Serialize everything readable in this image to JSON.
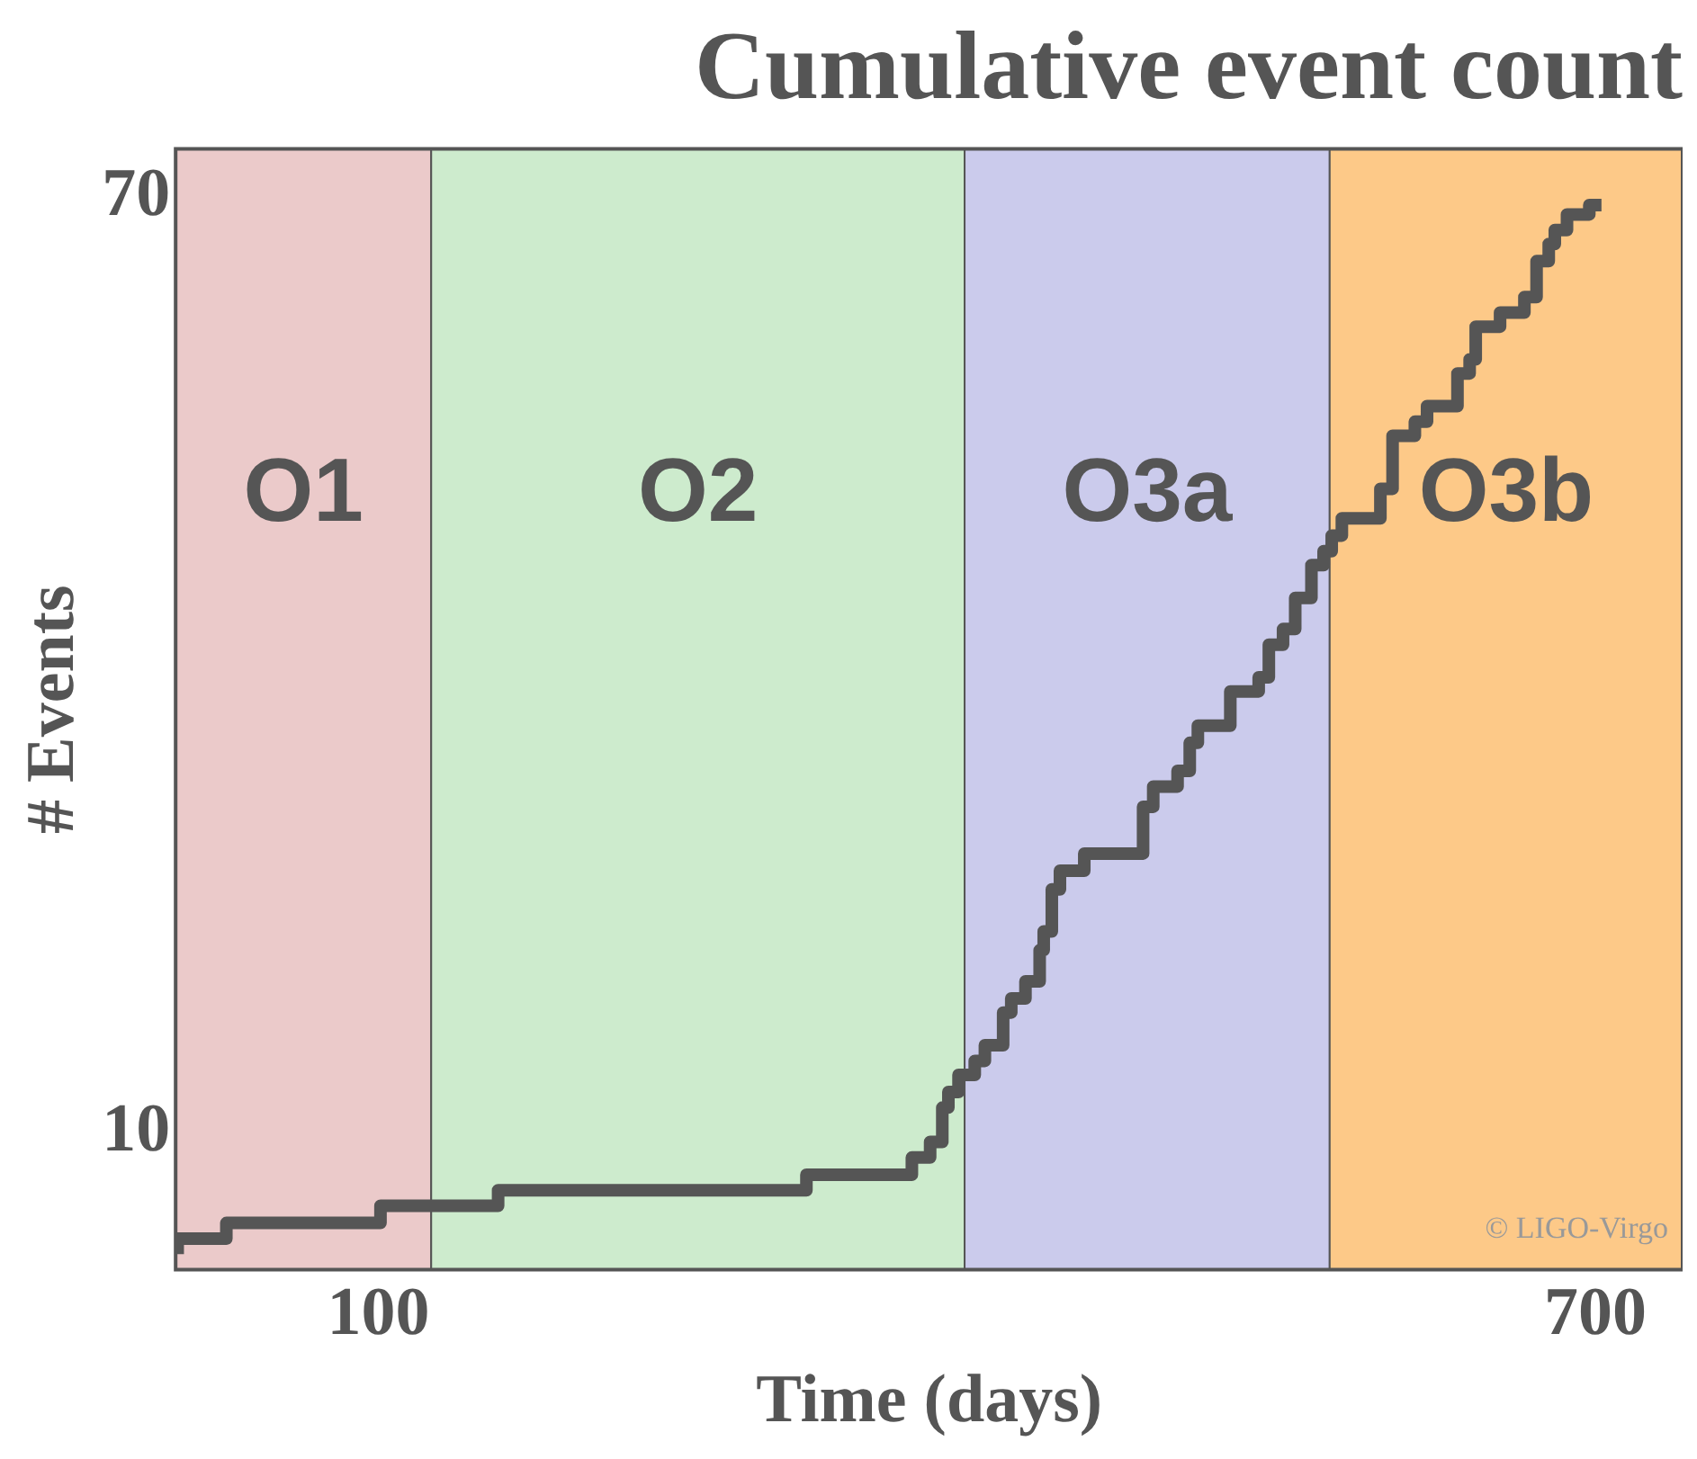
{
  "chart_data": {
    "type": "step",
    "title": "Cumulative event count",
    "xlabel": "Time (days)",
    "ylabel": "# Events",
    "xlim": [
      0,
      743
    ],
    "ylim": [
      1.2,
      73.1
    ],
    "xticks": [
      100,
      700
    ],
    "yticks": [
      10,
      70
    ],
    "legend": false,
    "marker": "none",
    "line_style": "solid",
    "bands": [
      {
        "axis": "x",
        "from": 0,
        "to": 126,
        "label": "O1",
        "color": "#ebcaca"
      },
      {
        "axis": "x",
        "from": 126,
        "to": 389,
        "label": "O2",
        "color": "#cdebcd"
      },
      {
        "axis": "x",
        "from": 389,
        "to": 569,
        "label": "O3a",
        "color": "#cbcbec"
      },
      {
        "axis": "x",
        "from": 569,
        "to": 743,
        "label": "O3b",
        "color": "#fdc988"
      }
    ],
    "annotations": [
      "© LIGO-Virgo"
    ],
    "series": [
      {
        "color": "#555555",
        "x": [
          1,
          25,
          101,
          159,
          311,
          363,
          372,
          378,
          381,
          386,
          394,
          399,
          408,
          412,
          419,
          426,
          428,
          432,
          436,
          448,
          477,
          482,
          494,
          500,
          504,
          520,
          534,
          539,
          546,
          552,
          560,
          566,
          570,
          575,
          594,
          600,
          611,
          617,
          632,
          638,
          641,
          653,
          665,
          671,
          677,
          680,
          686,
          697,
          701,
          703
        ],
        "values": [
          2.2,
          3.2,
          4.2,
          5.3,
          6.3,
          7.3,
          8.4,
          9.4,
          11.6,
          12.6,
          13.7,
          14.6,
          15.6,
          17.7,
          18.6,
          19.7,
          21.7,
          22.9,
          25.6,
          26.8,
          27.9,
          30.9,
          32.2,
          33.2,
          35.0,
          36.1,
          38.3,
          39.2,
          41.3,
          42.3,
          44.3,
          46.4,
          47.3,
          48.3,
          49.4,
          51.3,
          54.7,
          55.6,
          56.6,
          58.7,
          59.6,
          61.7,
          62.6,
          63.6,
          65.9,
          67.0,
          67.9,
          68.9,
          69.5,
          69.5
        ]
      }
    ]
  }
}
